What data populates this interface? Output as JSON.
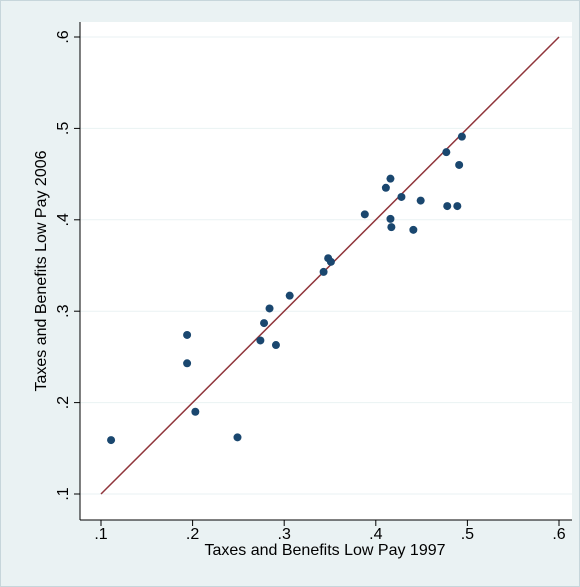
{
  "chart_data": {
    "type": "scatter",
    "x_label": "Taxes and Benefits Low Pay 1997",
    "y_label": "Taxes and Benefits Low Pay 2006",
    "x": [
      0.111,
      0.194,
      0.194,
      0.203,
      0.249,
      0.274,
      0.278,
      0.284,
      0.291,
      0.306,
      0.343,
      0.348,
      0.351,
      0.388,
      0.411,
      0.416,
      0.416,
      0.417,
      0.428,
      0.441,
      0.449,
      0.477,
      0.478,
      0.489,
      0.491,
      0.494
    ],
    "values": [
      0.159,
      0.274,
      0.243,
      0.19,
      0.162,
      0.268,
      0.287,
      0.303,
      0.263,
      0.317,
      0.343,
      0.358,
      0.354,
      0.406,
      0.435,
      0.445,
      0.401,
      0.392,
      0.425,
      0.389,
      0.421,
      0.474,
      0.415,
      0.415,
      0.46,
      0.491
    ],
    "color": "#1a476f",
    "diagonal_color": "#90353b",
    "xlim": [
      0.1,
      0.6
    ],
    "ylim": [
      0.1,
      0.6
    ],
    "xticks": [
      {
        "value": 0.1,
        "label": ".1"
      },
      {
        "value": 0.2,
        "label": ".2"
      },
      {
        "value": 0.3,
        "label": ".3"
      },
      {
        "value": 0.4,
        "label": ".4"
      },
      {
        "value": 0.5,
        "label": ".5"
      },
      {
        "value": 0.6,
        "label": ".6"
      }
    ],
    "yticks": [
      {
        "value": 0.1,
        "label": ".1"
      },
      {
        "value": 0.2,
        "label": ".2"
      },
      {
        "value": 0.3,
        "label": ".3"
      },
      {
        "value": 0.4,
        "label": ".4"
      },
      {
        "value": 0.5,
        "label": ".5"
      },
      {
        "value": 0.6,
        "label": ".6"
      }
    ],
    "grid": "y"
  }
}
